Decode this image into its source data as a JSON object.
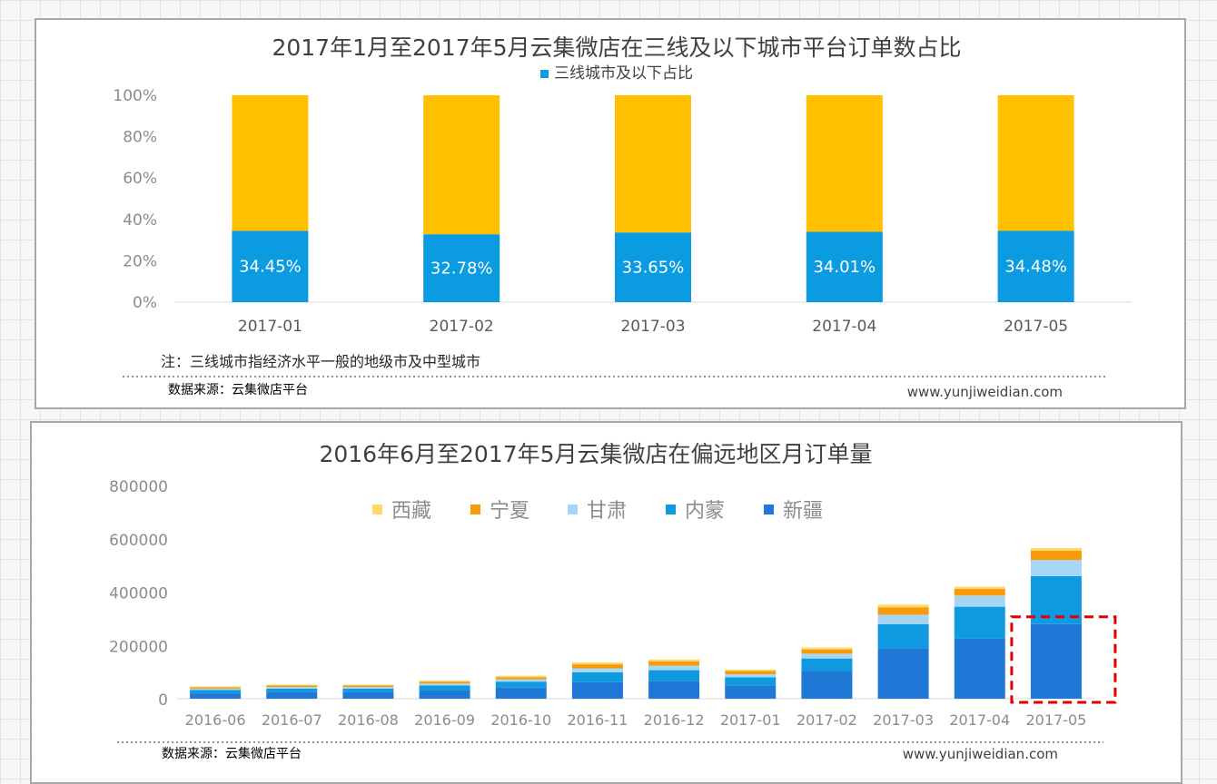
{
  "chart1": {
    "title": "2017年1月至2017年5月云集微店在三线及以下城市平台订单数占比",
    "legend": "三线城市及以下占比",
    "note": "注：三线城市指经济水平一般的地级市及中型城市",
    "source": "数据来源：云集微店平台",
    "url": "www.yunjiweidian.com",
    "ytick_labels": [
      "0%",
      "20%",
      "40%",
      "60%",
      "80%",
      "100%"
    ]
  },
  "chart2": {
    "title": "2016年6月至2017年5月云集微店在偏远地区月订单量",
    "source": "数据来源：云集微店平台",
    "url": "www.yunjiweidian.com",
    "ytick_labels": [
      "0",
      "200000",
      "400000",
      "600000",
      "800000"
    ],
    "legend_order": [
      "西藏",
      "宁夏",
      "甘肃",
      "内蒙",
      "新疆"
    ]
  },
  "colors": {
    "blue_share": "#0b9be0",
    "yellow_rest": "#ffc000",
    "xinjiang": "#1f78d6",
    "neimeng": "#0f9ae0",
    "gansu": "#a7d6f5",
    "ningxia": "#f79a0c",
    "xizang": "#ffd966",
    "highlight_box": "#e00000"
  },
  "chart_data": [
    {
      "type": "bar",
      "title": "2017年1月至2017年5月云集微店在三线及以下城市平台订单数占比",
      "categories": [
        "2017-01",
        "2017-02",
        "2017-03",
        "2017-04",
        "2017-05"
      ],
      "series": [
        {
          "name": "三线城市及以下占比",
          "values": [
            34.45,
            32.78,
            33.65,
            34.01,
            34.48
          ]
        }
      ],
      "data_labels": [
        "34.45%",
        "32.78%",
        "33.65%",
        "34.01%",
        "34.48%"
      ],
      "stacked_percent": true,
      "ylim": [
        0,
        100
      ],
      "ytick_step": 20,
      "legend_position": "top"
    },
    {
      "type": "bar",
      "title": "2016年6月至2017年5月云集微店在偏远地区月订单量",
      "stacked": true,
      "categories": [
        "2016-06",
        "2016-07",
        "2016-08",
        "2016-09",
        "2016-10",
        "2016-11",
        "2016-12",
        "2017-01",
        "2017-02",
        "2017-03",
        "2017-04",
        "2017-05"
      ],
      "series": [
        {
          "name": "新疆",
          "values": [
            20000,
            25000,
            25000,
            32000,
            42000,
            62000,
            67000,
            50000,
            104000,
            190000,
            225000,
            280000
          ]
        },
        {
          "name": "内蒙",
          "values": [
            13000,
            13000,
            13000,
            18000,
            22000,
            37000,
            40000,
            30000,
            47000,
            90000,
            120000,
            180000
          ]
        },
        {
          "name": "甘肃",
          "values": [
            5000,
            6000,
            6000,
            7000,
            9000,
            15000,
            17000,
            12000,
            18000,
            35000,
            42000,
            60000
          ]
        },
        {
          "name": "宁夏",
          "values": [
            5000,
            6000,
            6000,
            7000,
            8000,
            15000,
            16000,
            12000,
            16000,
            28000,
            25000,
            35000
          ]
        },
        {
          "name": "西藏",
          "values": [
            3000,
            3000,
            3000,
            4000,
            5000,
            7000,
            7000,
            5000,
            7000,
            10000,
            8000,
            10000
          ]
        }
      ],
      "ylim": [
        0,
        800000
      ],
      "ytick_step": 200000,
      "legend_position": "top",
      "highlight_category": "2017-05"
    }
  ]
}
